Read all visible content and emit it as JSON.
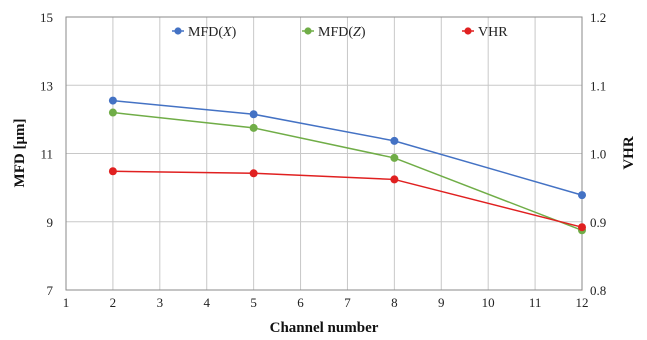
{
  "chart_data": {
    "type": "line",
    "title": "",
    "xlabel": "Channel number",
    "ylabel": "MFD [μm]",
    "y2label": "VHR",
    "xlim": [
      1,
      12
    ],
    "ylim": [
      7,
      15
    ],
    "y2lim": [
      0.8,
      1.2
    ],
    "xticks": [
      "1",
      "2",
      "3",
      "4",
      "5",
      "6",
      "7",
      "8",
      "9",
      "10",
      "11",
      "12"
    ],
    "yticks": [
      "7",
      "9",
      "11",
      "13",
      "15"
    ],
    "y2ticks": [
      "0.8",
      "0.9",
      "1.0",
      "1.1",
      "1.2"
    ],
    "grid": true,
    "legend_position": "top",
    "series": [
      {
        "name": "MFD(X)",
        "name_prefix": "MFD(",
        "name_var": "X",
        "name_suffix": ")",
        "axis": "left",
        "color": "#4472c4",
        "x": [
          2,
          5,
          8,
          12
        ],
        "y": [
          12.55,
          12.15,
          11.37,
          9.78
        ]
      },
      {
        "name": "MFD(Z)",
        "name_prefix": "MFD(",
        "name_var": "Z",
        "name_suffix": ")",
        "axis": "left",
        "color": "#70ad47",
        "x": [
          2,
          5,
          8,
          12
        ],
        "y": [
          12.2,
          11.75,
          10.87,
          8.75
        ]
      },
      {
        "name": "VHR",
        "name_prefix": "VHR",
        "name_var": "",
        "name_suffix": "",
        "axis": "right",
        "color": "#e02020",
        "x": [
          2,
          5,
          8,
          12
        ],
        "y": [
          0.974,
          0.971,
          0.962,
          0.892
        ]
      }
    ]
  }
}
